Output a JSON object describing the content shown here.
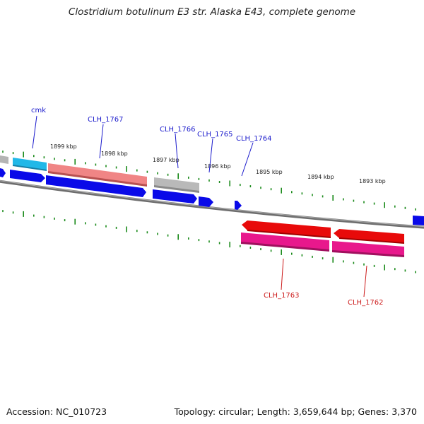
{
  "title": "Clostridium botulinum E3 str. Alaska E43, complete genome",
  "accession": "Accession: NC_010723",
  "topology": "Topology: circular; Length: 3,659,644 bp; Genes: 3,370",
  "colors": {
    "backbone": "#808080",
    "tick": "#1a8a1a",
    "label_forward": "#1a1acc",
    "label_reverse": "#cc1a1a",
    "cds_forward": "#0000e6",
    "cds_reverse": "#e60000",
    "gene_cyan": "#1ab8e6",
    "gene_salmon": "#f08080",
    "gene_gray": "#b0b0b0",
    "gene_magenta": "#e6178a"
  },
  "scale_labels": [
    {
      "text": "1899 kbp",
      "icon": "scale-1899"
    },
    {
      "text": "1898 kbp",
      "icon": "scale-1898"
    },
    {
      "text": "1897 kbp",
      "icon": "scale-1897"
    },
    {
      "text": "1896 kbp",
      "icon": "scale-1896"
    },
    {
      "text": "1895 kbp",
      "icon": "scale-1895"
    },
    {
      "text": "1894 kbp",
      "icon": "scale-1894"
    },
    {
      "text": "1893 kbp",
      "icon": "scale-1893"
    }
  ],
  "gene_labels": [
    {
      "text": "cmk",
      "strand": "forward"
    },
    {
      "text": "CLH_1767",
      "strand": "forward"
    },
    {
      "text": "CLH_1766",
      "strand": "forward"
    },
    {
      "text": "CLH_1765",
      "strand": "forward"
    },
    {
      "text": "CLH_1764",
      "strand": "forward"
    },
    {
      "text": "CLH_1763",
      "strand": "reverse"
    },
    {
      "text": "CLH_1762",
      "strand": "reverse"
    }
  ]
}
